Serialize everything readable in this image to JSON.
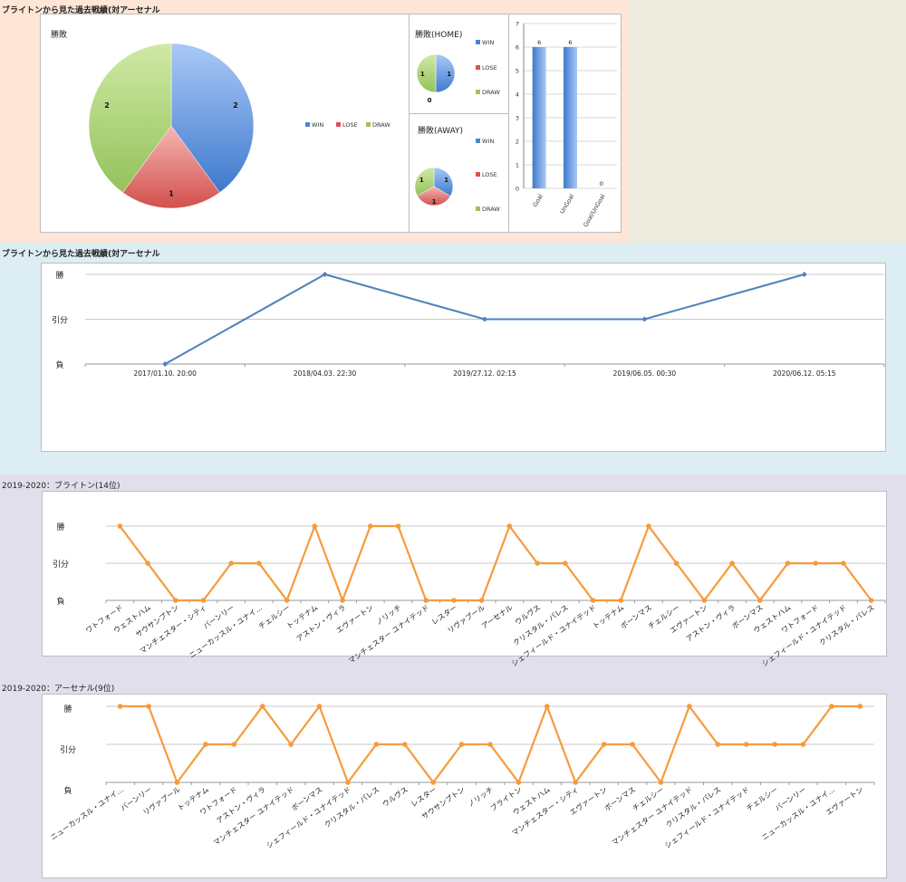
{
  "section1": {
    "title": "ブライトンから見た過去戦績(対アーセナル",
    "pie_main": {
      "title": "勝敗"
    },
    "pie_home": {
      "title": "勝敗(HOME)"
    },
    "pie_away": {
      "title": "勝敗(AWAY)"
    }
  },
  "section2": {
    "title": "ブライトンから見た過去戦績(対アーセナル"
  },
  "section3": {
    "title": "2019-2020：ブライトン(14位)"
  },
  "section4": {
    "title": "2019-2020：アーセナル(9位)"
  },
  "colors": {
    "win": "#4a86d4",
    "lose": "#d9534f",
    "draw": "#9cc35a",
    "line": "#4f81bd",
    "orange": "#f79a3b"
  },
  "chart_data": [
    {
      "type": "pie",
      "title": "勝敗",
      "categories": [
        "WIN",
        "LOSE",
        "DRAW"
      ],
      "values": [
        2,
        1,
        2
      ]
    },
    {
      "type": "pie",
      "title": "勝敗(HOME)",
      "categories": [
        "WIN",
        "LOSE",
        "DRAW"
      ],
      "values": [
        1,
        0,
        1
      ]
    },
    {
      "type": "pie",
      "title": "勝敗(AWAY)",
      "categories": [
        "WIN",
        "LOSE",
        "DRAW"
      ],
      "values": [
        1,
        1,
        1
      ]
    },
    {
      "type": "bar",
      "categories": [
        "Goal",
        "UnGoal",
        "Goal/UnGoal"
      ],
      "values": [
        6,
        6,
        0
      ],
      "ylim": [
        0,
        7
      ],
      "yticks": [
        "0",
        "1",
        "2",
        "3",
        "4",
        "5",
        "6",
        "7"
      ]
    },
    {
      "type": "line",
      "x": [
        "2017/01.10. 20:00",
        "2018/04.03. 22:30",
        "2019/27.12. 02:15",
        "2019/06.05. 00:30",
        "2020/06.12. 05:15"
      ],
      "values": [
        0,
        2,
        1,
        1,
        2
      ],
      "ytick_labels": [
        "負",
        "引分",
        "勝"
      ]
    },
    {
      "type": "line",
      "title": "2019-2020：ブライトン(14位)",
      "x": [
        "ワトフォード",
        "ウェストハム",
        "サウサンプトン",
        "マンチェスター・シティ",
        "バーンリー",
        "ニューカッスル・ユナイ…",
        "チェルシー",
        "トッテナム",
        "アストン・ヴィラ",
        "エヴァートン",
        "ノリッチ",
        "マンチェスター ユナイテッド",
        "レスター",
        "リヴァプール",
        "アーセナル",
        "ウルヴス",
        "クリスタル・パレス",
        "シェフィールド・ユナイテッド",
        "トッテナム",
        "ボーンマス",
        "チェルシー",
        "エヴァートン",
        "アストン・ヴィラ",
        "ボーンマス",
        "ウェストハム",
        "ワトフォード",
        "シェフィールド・ユナイテッド",
        "クリスタル・パレス"
      ],
      "values": [
        2,
        1,
        0,
        0,
        1,
        1,
        0,
        2,
        0,
        2,
        2,
        0,
        0,
        0,
        2,
        1,
        1,
        0,
        0,
        2,
        1,
        0,
        1,
        0,
        1,
        1,
        1,
        0
      ],
      "ytick_labels": [
        "負",
        "引分",
        "勝"
      ]
    },
    {
      "type": "line",
      "title": "2019-2020：アーセナル(9位)",
      "x": [
        "ニューカッスル・ユナイ…",
        "バーンリー",
        "リヴァプール",
        "トッテナム",
        "ワトフォード",
        "アストン・ヴィラ",
        "マンチェスター ユナイテッド",
        "ボーンマス",
        "シェフィールド・ユナイテッド",
        "クリスタル・パレス",
        "ウルヴス",
        "レスター",
        "サウサンプトン",
        "ノリッチ",
        "ブライトン",
        "ウェストハム",
        "マンチェスター・シティ",
        "エヴァートン",
        "ボーンマス",
        "チェルシー",
        "マンチェスター ユナイテッド",
        "クリスタル・パレス",
        "シェフィールド・ユナイテッド",
        "チェルシー",
        "バーンリー",
        "ニューカッスル・ユナイ…",
        "エヴァートン"
      ],
      "values": [
        2,
        2,
        0,
        1,
        1,
        2,
        1,
        2,
        0,
        1,
        1,
        0,
        1,
        1,
        0,
        2,
        0,
        1,
        1,
        0,
        2,
        1,
        1,
        1,
        1,
        2,
        2
      ],
      "ytick_labels": [
        "負",
        "引分",
        "勝"
      ]
    }
  ]
}
